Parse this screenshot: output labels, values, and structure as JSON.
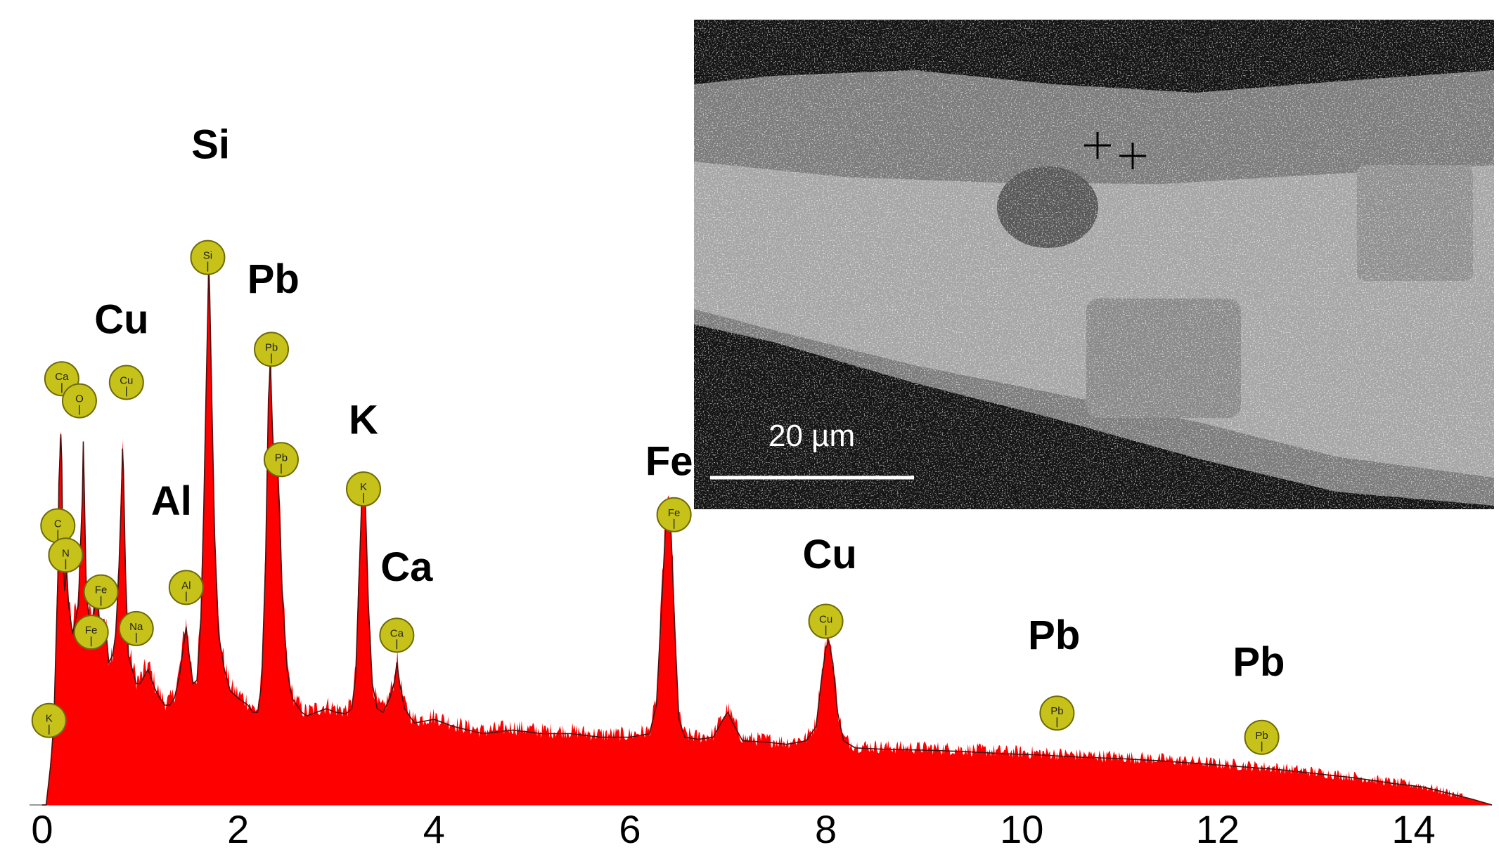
{
  "chart_data": {
    "type": "area",
    "x_ticks": [
      "0",
      "2",
      "4",
      "6",
      "8",
      "10",
      "12",
      "14"
    ],
    "xlim": [
      0,
      14.8
    ],
    "ylim": [
      0,
      780
    ],
    "spectrum": [
      [
        0.0,
        0
      ],
      [
        0.04,
        0
      ],
      [
        0.09,
        60
      ],
      [
        0.12,
        120
      ],
      [
        0.14,
        220
      ],
      [
        0.16,
        320
      ],
      [
        0.17,
        450
      ],
      [
        0.19,
        520
      ],
      [
        0.2,
        480
      ],
      [
        0.21,
        360
      ],
      [
        0.23,
        300
      ],
      [
        0.25,
        330
      ],
      [
        0.27,
        280
      ],
      [
        0.31,
        240
      ],
      [
        0.34,
        260
      ],
      [
        0.37,
        280
      ],
      [
        0.39,
        360
      ],
      [
        0.41,
        430
      ],
      [
        0.42,
        510
      ],
      [
        0.43,
        440
      ],
      [
        0.45,
        300
      ],
      [
        0.48,
        260
      ],
      [
        0.5,
        250
      ],
      [
        0.53,
        270
      ],
      [
        0.56,
        300
      ],
      [
        0.58,
        260
      ],
      [
        0.6,
        240
      ],
      [
        0.63,
        260
      ],
      [
        0.66,
        230
      ],
      [
        0.68,
        200
      ],
      [
        0.72,
        210
      ],
      [
        0.75,
        240
      ],
      [
        0.78,
        320
      ],
      [
        0.81,
        440
      ],
      [
        0.82,
        500
      ],
      [
        0.83,
        470
      ],
      [
        0.85,
        330
      ],
      [
        0.88,
        210
      ],
      [
        0.92,
        190
      ],
      [
        0.96,
        170
      ],
      [
        1.0,
        170
      ],
      [
        1.04,
        180
      ],
      [
        1.08,
        190
      ],
      [
        1.12,
        175
      ],
      [
        1.16,
        160
      ],
      [
        1.2,
        150
      ],
      [
        1.25,
        140
      ],
      [
        1.3,
        140
      ],
      [
        1.35,
        150
      ],
      [
        1.4,
        180
      ],
      [
        1.44,
        220
      ],
      [
        1.47,
        250
      ],
      [
        1.5,
        210
      ],
      [
        1.54,
        170
      ],
      [
        1.58,
        175
      ],
      [
        1.62,
        260
      ],
      [
        1.65,
        420
      ],
      [
        1.67,
        560
      ],
      [
        1.69,
        690
      ],
      [
        1.7,
        760
      ],
      [
        1.71,
        720
      ],
      [
        1.73,
        580
      ],
      [
        1.76,
        380
      ],
      [
        1.8,
        240
      ],
      [
        1.86,
        190
      ],
      [
        1.92,
        160
      ],
      [
        2.0,
        150
      ],
      [
        2.05,
        145
      ],
      [
        2.1,
        140
      ],
      [
        2.15,
        130
      ],
      [
        2.2,
        130
      ],
      [
        2.24,
        170
      ],
      [
        2.28,
        340
      ],
      [
        2.31,
        570
      ],
      [
        2.33,
        620
      ],
      [
        2.35,
        530
      ],
      [
        2.37,
        470
      ],
      [
        2.4,
        470
      ],
      [
        2.42,
        420
      ],
      [
        2.45,
        300
      ],
      [
        2.5,
        190
      ],
      [
        2.55,
        150
      ],
      [
        2.6,
        140
      ],
      [
        2.65,
        130
      ],
      [
        2.7,
        125
      ],
      [
        2.8,
        130
      ],
      [
        2.9,
        135
      ],
      [
        3.0,
        130
      ],
      [
        3.1,
        128
      ],
      [
        3.16,
        135
      ],
      [
        3.2,
        180
      ],
      [
        3.23,
        300
      ],
      [
        3.26,
        420
      ],
      [
        3.28,
        450
      ],
      [
        3.3,
        420
      ],
      [
        3.33,
        280
      ],
      [
        3.37,
        170
      ],
      [
        3.42,
        135
      ],
      [
        3.48,
        130
      ],
      [
        3.55,
        150
      ],
      [
        3.6,
        175
      ],
      [
        3.62,
        200
      ],
      [
        3.65,
        170
      ],
      [
        3.7,
        135
      ],
      [
        3.8,
        115
      ],
      [
        4.0,
        120
      ],
      [
        4.2,
        110
      ],
      [
        4.5,
        100
      ],
      [
        4.8,
        105
      ],
      [
        5.1,
        100
      ],
      [
        5.4,
        100
      ],
      [
        5.7,
        95
      ],
      [
        6.0,
        95
      ],
      [
        6.2,
        100
      ],
      [
        6.27,
        140
      ],
      [
        6.32,
        270
      ],
      [
        6.36,
        380
      ],
      [
        6.39,
        410
      ],
      [
        6.42,
        380
      ],
      [
        6.46,
        240
      ],
      [
        6.5,
        120
      ],
      [
        6.56,
        95
      ],
      [
        6.7,
        92
      ],
      [
        6.85,
        95
      ],
      [
        6.95,
        120
      ],
      [
        7.0,
        130
      ],
      [
        7.05,
        115
      ],
      [
        7.15,
        90
      ],
      [
        7.4,
        88
      ],
      [
        7.6,
        85
      ],
      [
        7.8,
        90
      ],
      [
        7.9,
        110
      ],
      [
        7.95,
        170
      ],
      [
        8.0,
        220
      ],
      [
        8.03,
        230
      ],
      [
        8.07,
        200
      ],
      [
        8.12,
        130
      ],
      [
        8.18,
        90
      ],
      [
        8.3,
        80
      ],
      [
        8.6,
        78
      ],
      [
        9.0,
        77
      ],
      [
        9.4,
        75
      ],
      [
        9.8,
        72
      ],
      [
        10.2,
        70
      ],
      [
        10.6,
        67
      ],
      [
        11.0,
        65
      ],
      [
        11.4,
        62
      ],
      [
        11.8,
        58
      ],
      [
        12.2,
        54
      ],
      [
        12.6,
        50
      ],
      [
        13.0,
        44
      ],
      [
        13.4,
        38
      ],
      [
        13.8,
        30
      ],
      [
        14.1,
        25
      ],
      [
        14.4,
        15
      ],
      [
        14.6,
        8
      ],
      [
        14.8,
        0
      ]
    ],
    "peak_annotations": [
      {
        "label": "Si",
        "x": 1.72,
        "y": 880,
        "size": 58
      },
      {
        "label": "Cu",
        "x": 0.81,
        "y": 642,
        "size": 58
      },
      {
        "label": "Pb",
        "x": 2.36,
        "y": 697,
        "size": 58
      },
      {
        "label": "Al",
        "x": 1.32,
        "y": 395,
        "size": 58
      },
      {
        "label": "K",
        "x": 3.28,
        "y": 505,
        "size": 58
      },
      {
        "label": "Ca",
        "x": 3.72,
        "y": 305,
        "size": 58
      },
      {
        "label": "Fe",
        "x": 6.4,
        "y": 449,
        "size": 58
      },
      {
        "label": "Cu",
        "x": 8.04,
        "y": 322,
        "size": 58
      },
      {
        "label": "Pb",
        "x": 10.33,
        "y": 212,
        "size": 58
      },
      {
        "label": "Pb",
        "x": 12.42,
        "y": 176,
        "size": 58
      }
    ],
    "element_markers": [
      {
        "label": "Si",
        "x": 1.69,
        "y": 745
      },
      {
        "label": "Pb",
        "x": 2.34,
        "y": 620
      },
      {
        "label": "Pb",
        "x": 2.44,
        "y": 470
      },
      {
        "label": "Cu",
        "x": 0.86,
        "y": 575
      },
      {
        "label": "Ca",
        "x": 0.2,
        "y": 580
      },
      {
        "label": "O",
        "x": 0.38,
        "y": 550
      },
      {
        "label": "C",
        "x": 0.16,
        "y": 380
      },
      {
        "label": "N",
        "x": 0.24,
        "y": 340
      },
      {
        "label": "Fe",
        "x": 0.6,
        "y": 290
      },
      {
        "label": "Fe",
        "x": 0.5,
        "y": 235
      },
      {
        "label": "Na",
        "x": 0.96,
        "y": 240
      },
      {
        "label": "Al",
        "x": 1.47,
        "y": 296
      },
      {
        "label": "K",
        "x": 0.07,
        "y": 115
      },
      {
        "label": "K",
        "x": 3.28,
        "y": 430
      },
      {
        "label": "Ca",
        "x": 3.62,
        "y": 231
      },
      {
        "label": "Fe",
        "x": 6.45,
        "y": 395
      },
      {
        "label": "Cu",
        "x": 8.0,
        "y": 250
      },
      {
        "label": "Pb",
        "x": 10.36,
        "y": 125
      },
      {
        "label": "Pb",
        "x": 12.45,
        "y": 92
      }
    ],
    "colors": {
      "fill": "#ff0000",
      "outline": "#4a1010",
      "marker": "#c6c21a",
      "marker_stroke": "#6e6a05"
    }
  },
  "inset": {
    "type": "SEM micrograph",
    "scale_label": "20 µm"
  }
}
